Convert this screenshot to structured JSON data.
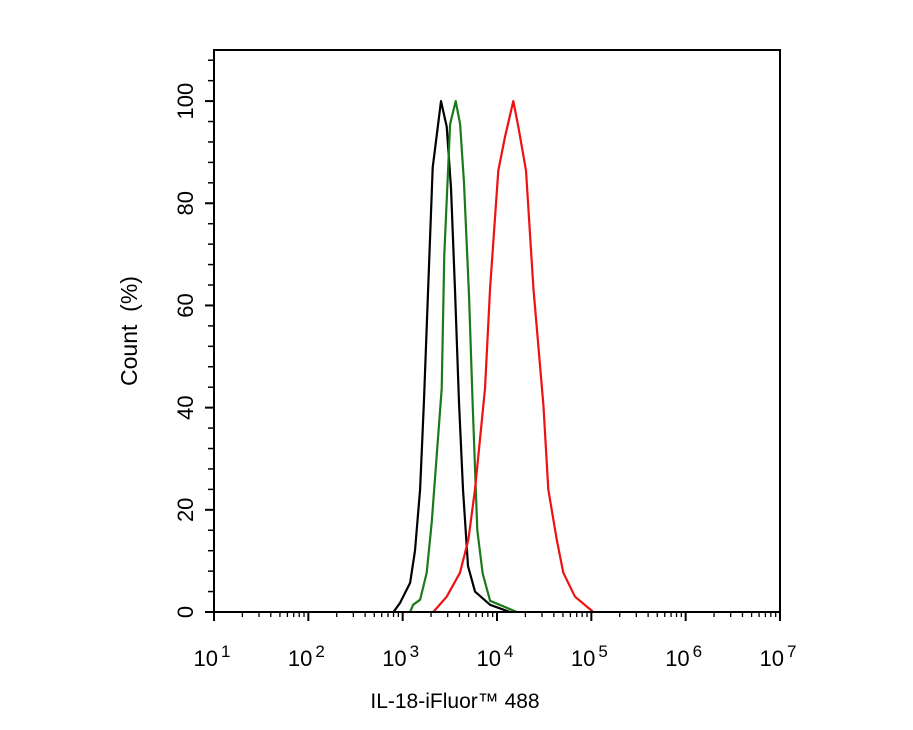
{
  "chart_data": {
    "type": "line",
    "title": "",
    "xlabel": "IL-18-iFluor™ 488",
    "ylabel": "Count  (%)",
    "xscale": "log",
    "xlim": [
      10,
      10000000
    ],
    "ylim": [
      0,
      110
    ],
    "x_ticks": [
      {
        "base": "10",
        "exp": "1"
      },
      {
        "base": "10",
        "exp": "2"
      },
      {
        "base": "10",
        "exp": "3"
      },
      {
        "base": "10",
        "exp": "4"
      },
      {
        "base": "10",
        "exp": "5"
      },
      {
        "base": "10",
        "exp": "6"
      },
      {
        "base": "10",
        "exp": "7"
      }
    ],
    "y_ticks": [
      "0",
      "20",
      "40",
      "60",
      "80",
      "100"
    ],
    "grid": false,
    "series": [
      {
        "color": "#000000",
        "x": [
          800,
          940,
          1200,
          1350,
          1530,
          1680,
          1860,
          2080,
          2550,
          2930,
          3250,
          3590,
          3960,
          4360,
          4930,
          5850,
          8440,
          13700
        ],
        "y": [
          0,
          1.8,
          5.7,
          12,
          24,
          41,
          63,
          87,
          100,
          95,
          83,
          63,
          41,
          24,
          9,
          4,
          1.4,
          0
        ]
      },
      {
        "color": "#1a7a1a",
        "x": [
          1200,
          1290,
          1530,
          1800,
          2030,
          2590,
          2760,
          3180,
          3650,
          4060,
          4470,
          5050,
          5520,
          6180,
          7050,
          8440,
          16200
        ],
        "y": [
          0,
          1.4,
          2.4,
          7.7,
          17.5,
          43.7,
          70,
          95.5,
          100,
          95.5,
          84,
          62,
          40.5,
          16,
          7.5,
          2.2,
          0
        ]
      },
      {
        "color": "#ee1111",
        "x": [
          2110,
          2930,
          4050,
          4970,
          5850,
          7460,
          8440,
          10330,
          12160,
          14900,
          16830,
          20300,
          24300,
          31000,
          35000,
          42900,
          50500,
          67200,
          105000
        ],
        "y": [
          0,
          3,
          7.7,
          14.2,
          24,
          43.7,
          63.4,
          86.4,
          93,
          100,
          95,
          86.4,
          63.4,
          40.5,
          24,
          14.2,
          7.7,
          3,
          0
        ]
      }
    ]
  }
}
